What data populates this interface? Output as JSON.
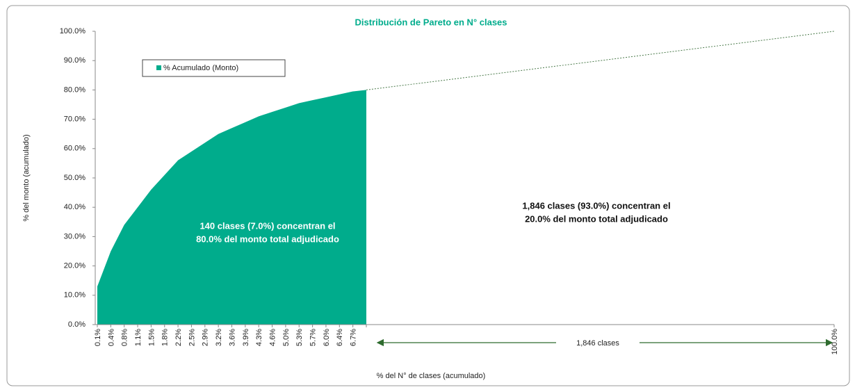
{
  "chart_data": {
    "type": "area",
    "title": "Distribución de Pareto en N° clases",
    "x_label": "% del N° de clases (acumulado)",
    "y_label": "% del monto (acumulado)",
    "categories": [
      "0.1%",
      "0.4%",
      "0.8%",
      "1.1%",
      "1.5%",
      "1.8%",
      "2.2%",
      "2.5%",
      "2.9%",
      "3.2%",
      "3.6%",
      "3.9%",
      "4.3%",
      "4.6%",
      "5.0%",
      "5.3%",
      "5.7%",
      "6.0%",
      "6.4%",
      "6.7%",
      null,
      "100.0%"
    ],
    "series": [
      {
        "name": "% Acumulado (Monto)",
        "color": "#00ac8c",
        "values": [
          13,
          25,
          34,
          40,
          46,
          51,
          56,
          59,
          62,
          65,
          67,
          69,
          71,
          72.5,
          74,
          75.5,
          76.5,
          77.5,
          78.5,
          79.5,
          80,
          100
        ]
      }
    ],
    "ylim": [
      0,
      100
    ],
    "yticks": [
      {
        "value": 0,
        "label": "0.0%"
      },
      {
        "value": 10,
        "label": "10.0%"
      },
      {
        "value": 20,
        "label": "20.0%"
      },
      {
        "value": 30,
        "label": "30.0%"
      },
      {
        "value": 40,
        "label": "40.0%"
      },
      {
        "value": 50,
        "label": "50.0%"
      },
      {
        "value": 60,
        "label": "60.0%"
      },
      {
        "value": 70,
        "label": "70.0%"
      },
      {
        "value": 80,
        "label": "80.0%"
      },
      {
        "value": 90,
        "label": "90.0%"
      },
      {
        "value": 100,
        "label": "100.0%"
      }
    ],
    "annotations": [
      {
        "lines": [
          "140 clases (7.0%) concentran el",
          "80.0% del monto total adjudicado"
        ]
      },
      {
        "lines": [
          "1,846 clases (93.0%) concentran el",
          "20.0% del monto total adjudicado"
        ]
      },
      {
        "text": "1,846 clases"
      }
    ]
  }
}
